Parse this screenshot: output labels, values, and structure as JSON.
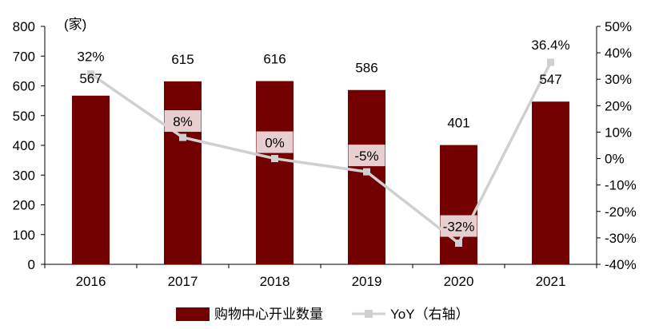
{
  "chart_data": {
    "type": "bar",
    "title": "",
    "categories": [
      "2016",
      "2017",
      "2018",
      "2019",
      "2020",
      "2021"
    ],
    "unit_label": "(家)",
    "series": [
      {
        "name": "购物中心开业数量",
        "type": "bar",
        "axis": "left",
        "values": [
          567,
          615,
          616,
          586,
          401,
          547
        ],
        "labels": [
          "567",
          "615",
          "616",
          "586",
          "401",
          "547"
        ]
      },
      {
        "name": "YoY（右轴）",
        "type": "line",
        "axis": "right",
        "values": [
          32,
          8,
          0,
          -5,
          -32,
          36.4
        ],
        "labels": [
          "32%",
          "8%",
          "0%",
          "-5%",
          "-32%",
          "36.4%"
        ]
      }
    ],
    "y_left": {
      "min": 0,
      "max": 800,
      "ticks": [
        "0",
        "100",
        "200",
        "300",
        "400",
        "500",
        "600",
        "700",
        "800"
      ]
    },
    "y_right": {
      "min": -40,
      "max": 50,
      "ticks": [
        "-40%",
        "-30%",
        "-20%",
        "-10%",
        "0%",
        "10%",
        "20%",
        "30%",
        "40%",
        "50%"
      ]
    },
    "grid": false,
    "legend_position": "bottom",
    "colors": {
      "bar": "#720000",
      "line": "#d0d0d0",
      "label_box": "#e8cfcf"
    }
  }
}
